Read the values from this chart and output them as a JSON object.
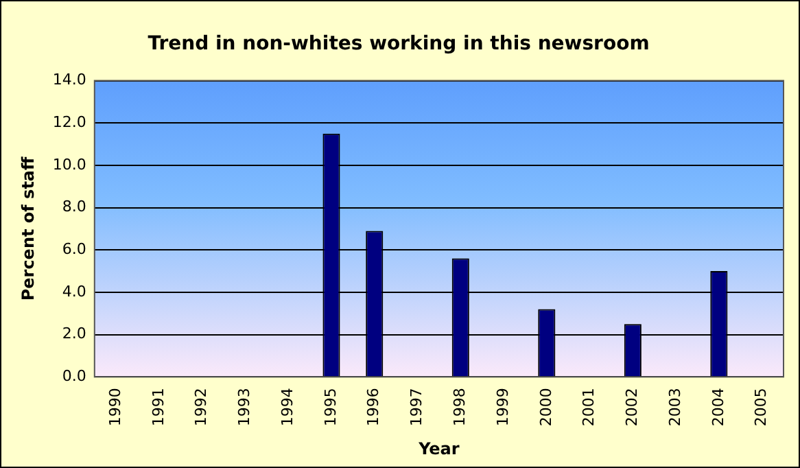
{
  "chart_data": {
    "type": "bar",
    "title": "Trend in non-whites working in this newsroom",
    "xlabel": "Year",
    "ylabel": "Percent of staff",
    "categories": [
      "1990",
      "1991",
      "1992",
      "1993",
      "1994",
      "1995",
      "1996",
      "1997",
      "1998",
      "1999",
      "2000",
      "2001",
      "2002",
      "2003",
      "2004",
      "2005"
    ],
    "values": [
      null,
      null,
      null,
      null,
      null,
      11.5,
      6.9,
      null,
      5.6,
      null,
      3.2,
      null,
      2.5,
      null,
      5.0,
      null
    ],
    "color": "#000080",
    "ylim": [
      0,
      14
    ],
    "yticks": [
      {
        "value": 0,
        "label": "0.0"
      },
      {
        "value": 2,
        "label": "2.0"
      },
      {
        "value": 4,
        "label": "4.0"
      },
      {
        "value": 6,
        "label": "6.0"
      },
      {
        "value": 8,
        "label": "8.0"
      },
      {
        "value": 10,
        "label": "10.0"
      },
      {
        "value": 12,
        "label": "12.0"
      },
      {
        "value": 14,
        "label": "14.0"
      }
    ],
    "grid": "y",
    "legend": false
  }
}
